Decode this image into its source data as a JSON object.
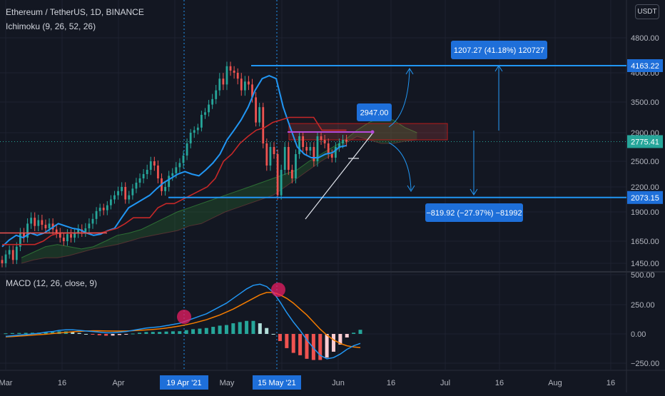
{
  "header": {
    "symbol_line": "Ethereum / TetherUS, 1D, BINANCE",
    "ichimoku_label": "Ichimoku (9, 26, 52, 26)",
    "macd_label": "MACD (12, 26, close, 9)",
    "currency": "USDT"
  },
  "colors": {
    "background": "#131722",
    "grid": "#1e2230",
    "bull": "#26a69a",
    "bear": "#ef5350",
    "tenkan": "#2196f3",
    "kijun": "#c62828",
    "kumo": "#2e7d32",
    "drawing": "#2196f3",
    "macd_line": "#2196f3",
    "signal_line": "#f57c00"
  },
  "chart_data": [
    {
      "type": "candlestick",
      "panel": "price",
      "title": "Ethereum / TetherUS, 1D, BINANCE",
      "ylim": [
        1400,
        4900
      ],
      "y_ticks": [
        "4800.00",
        "4000.00",
        "3500.00",
        "2900.00",
        "2500.00",
        "2200.00",
        "1900.00",
        "1650.00",
        "1450.00"
      ],
      "x_ticks": [
        "Mar",
        "16",
        "Apr",
        "16",
        "May",
        "16",
        "Jun",
        "16",
        "Jul",
        "16",
        "Aug",
        "16"
      ],
      "highlighted_dates": [
        "19 Apr '21",
        "15 May '21"
      ],
      "series": [
        {
          "name": "close",
          "start": "Mar 1",
          "values": [
            1450,
            1530,
            1570,
            1480,
            1600,
            1720,
            1680,
            1800,
            1850,
            1780,
            1830,
            1790,
            1760,
            1800,
            1750,
            1720,
            1680,
            1650,
            1710,
            1680,
            1720,
            1750,
            1730,
            1760,
            1800,
            1840,
            1910,
            1950,
            1920,
            1980,
            2050,
            2100,
            2150,
            2200,
            2050,
            2100,
            2180,
            2250,
            2300,
            2350,
            2400,
            2500,
            2450,
            2300,
            2150,
            2200,
            2330,
            2360,
            2430,
            2480,
            2580,
            2750,
            2900,
            2950,
            3000,
            3250,
            3300,
            3450,
            3550,
            3700,
            3900,
            3800,
            4150,
            4050,
            4000,
            3900,
            3700,
            3850,
            3800,
            3580,
            3100,
            3400,
            2750,
            2450,
            2700,
            2600,
            2100,
            2400,
            2700,
            2400,
            2300,
            2600,
            2850,
            2700,
            2650,
            2700,
            2500,
            2850,
            2800,
            2750,
            2600,
            2550,
            2700,
            2750,
            2800,
            2775
          ]
        }
      ],
      "tenkan_sen": [
        1600,
        1660,
        1700,
        1680,
        1720,
        1700,
        1720,
        1760,
        1800,
        1780,
        1760,
        1750,
        1720,
        1700,
        1710,
        1740,
        1760,
        1850,
        1950,
        2000,
        2050,
        2100,
        2180,
        2250,
        2300,
        2350,
        2380,
        2350,
        2330,
        2400,
        2480,
        2600,
        2800,
        2950,
        3150,
        3400,
        3700,
        3900,
        3950,
        3900,
        3400,
        3000,
        2700,
        2600,
        2550,
        2550,
        2600,
        2620,
        2700,
        2720
      ],
      "kijun_sen": [
        1620,
        1620,
        1620,
        1620,
        1620,
        1650,
        1700,
        1720,
        1720,
        1720,
        1720,
        1720,
        1720,
        1740,
        1760,
        1800,
        1850,
        1850,
        1850,
        1950,
        2000,
        2000,
        2050,
        2100,
        2150,
        2200,
        2300,
        2500,
        2600,
        2750,
        2850,
        2950,
        3000,
        3100,
        3150,
        3200,
        3200,
        3200,
        3200,
        2950,
        2950,
        2950,
        2950
      ],
      "kumo_upper": [
        1500,
        1550,
        1600,
        1620,
        1600,
        1580,
        1600,
        1650,
        1700,
        1720,
        1750,
        1800,
        1850,
        1900,
        1950,
        2000,
        2050,
        2100,
        2150,
        2200,
        2250,
        2300,
        2350,
        2400,
        2500,
        2600,
        2700,
        2800,
        2950,
        3100,
        3200,
        3150,
        3000,
        2900
      ],
      "kumo_lower": [
        1450,
        1480,
        1500,
        1500,
        1520,
        1550,
        1580,
        1600,
        1620,
        1650,
        1680,
        1700,
        1720,
        1740,
        1780,
        1800,
        1850,
        1900,
        1950,
        2000,
        2050,
        2100,
        2200,
        2300,
        2400,
        2500,
        2600,
        2750,
        2850,
        2800,
        2750,
        2750,
        2780,
        2800
      ],
      "price_labels": {
        "current": "2775.41",
        "resistance": "4163.22",
        "support": "2073.15"
      },
      "annotations": {
        "box": "2947.00",
        "up_projection": "1207.27 (41.18%) 120727",
        "down_projection": "−819.92 (−27.97%) −81992"
      }
    },
    {
      "type": "histogram",
      "panel": "macd",
      "title": "MACD (12, 26, close, 9)",
      "ylim": [
        -300,
        520
      ],
      "y_ticks": [
        "500.00",
        "250.00",
        "0.00",
        "−250.00"
      ],
      "series": [
        {
          "name": "MACD",
          "values": [
            -20,
            -15,
            -10,
            -5,
            0,
            5,
            15,
            20,
            30,
            35,
            35,
            30,
            25,
            20,
            15,
            10,
            10,
            15,
            20,
            30,
            40,
            50,
            55,
            60,
            70,
            80,
            90,
            110,
            130,
            150,
            170,
            200,
            230,
            260,
            300,
            340,
            380,
            410,
            420,
            400,
            350,
            270,
            180,
            100,
            30,
            -50,
            -120,
            -180,
            -210,
            -200,
            -170,
            -130,
            -100,
            -80
          ]
        },
        {
          "name": "Signal",
          "values": [
            -25,
            -22,
            -18,
            -14,
            -10,
            -6,
            -2,
            3,
            8,
            13,
            18,
            22,
            25,
            26,
            26,
            25,
            24,
            24,
            25,
            27,
            30,
            34,
            38,
            43,
            50,
            58,
            67,
            78,
            90,
            105,
            120,
            140,
            160,
            185,
            210,
            240,
            270,
            300,
            330,
            350,
            350,
            330,
            300,
            260,
            210,
            160,
            100,
            40,
            -10,
            -50,
            -80,
            -100,
            -110,
            -115
          ]
        },
        {
          "name": "Histogram",
          "values": [
            5,
            7,
            8,
            9,
            10,
            11,
            17,
            17,
            22,
            22,
            17,
            8,
            0,
            -6,
            -11,
            -15,
            -14,
            -9,
            -5,
            3,
            10,
            16,
            17,
            17,
            20,
            22,
            23,
            32,
            40,
            45,
            50,
            60,
            70,
            75,
            90,
            100,
            110,
            110,
            90,
            50,
            0,
            -60,
            -120,
            -160,
            -180,
            -210,
            -220,
            -220,
            -200,
            -150,
            -90,
            -30,
            10,
            35
          ]
        }
      ]
    }
  ]
}
